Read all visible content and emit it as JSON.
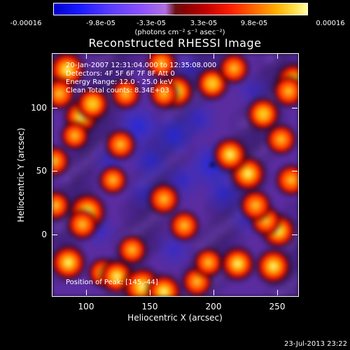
{
  "colorbar": {
    "ticks": [
      "-0.00016",
      "-9.8e-05",
      "-3.3e-05",
      "3.3e-05",
      "9.8e-05",
      "0.00016"
    ],
    "range": [
      -0.00016,
      0.00016
    ],
    "unit_label": "(photons cm⁻² s⁻¹ asec⁻²)"
  },
  "chart_data": {
    "type": "heatmap",
    "title": "Reconstructed RHESSI Image",
    "xlabel": "Heliocentric X (arcsec)",
    "ylabel": "Heliocentric Y (arcsec)",
    "xlim": [
      72,
      266
    ],
    "ylim": [
      -52,
      140
    ],
    "xticks": [
      "100",
      "150",
      "200",
      "250"
    ],
    "yticks": [
      "100",
      "50",
      "0"
    ],
    "peak_position": [
      145,
      -44
    ],
    "colormap_colors": [
      "#0000cc",
      "#8a50ff",
      "#8a0000",
      "#ff2000",
      "#ffb000",
      "#ffffa0"
    ],
    "hot_blobs": [
      {
        "x": 84,
        "y": 127,
        "v": 0.85
      },
      {
        "x": 78,
        "y": 108,
        "v": 0.6
      },
      {
        "x": 95,
        "y": 90,
        "v": 0.75
      },
      {
        "x": 74,
        "y": 55,
        "v": 0.55
      },
      {
        "x": 75,
        "y": 20,
        "v": 0.5
      },
      {
        "x": 100,
        "y": 15,
        "v": 0.9
      },
      {
        "x": 96,
        "y": 5,
        "v": 0.55
      },
      {
        "x": 85,
        "y": -25,
        "v": 0.8
      },
      {
        "x": 112,
        "y": -33,
        "v": 0.5
      },
      {
        "x": 123,
        "y": -36,
        "v": 0.75
      },
      {
        "x": 143,
        "y": -44,
        "v": 1.0
      },
      {
        "x": 160,
        "y": -48,
        "v": 0.8
      },
      {
        "x": 186,
        "y": -40,
        "v": 0.55
      },
      {
        "x": 195,
        "y": -25,
        "v": 0.5
      },
      {
        "x": 218,
        "y": -26,
        "v": 0.75
      },
      {
        "x": 246,
        "y": -28,
        "v": 0.8
      },
      {
        "x": 250,
        "y": 0,
        "v": 0.75
      },
      {
        "x": 240,
        "y": 8,
        "v": 0.55
      },
      {
        "x": 232,
        "y": 20,
        "v": 0.6
      },
      {
        "x": 260,
        "y": 40,
        "v": 0.6
      },
      {
        "x": 226,
        "y": 45,
        "v": 0.8
      },
      {
        "x": 212,
        "y": 60,
        "v": 0.75
      },
      {
        "x": 252,
        "y": 72,
        "v": 0.55
      },
      {
        "x": 238,
        "y": 92,
        "v": 0.7
      },
      {
        "x": 262,
        "y": 118,
        "v": 0.85
      },
      {
        "x": 258,
        "y": 110,
        "v": 0.6
      },
      {
        "x": 198,
        "y": 116,
        "v": 0.65
      },
      {
        "x": 158,
        "y": 132,
        "v": 0.55
      },
      {
        "x": 170,
        "y": 110,
        "v": 0.75
      },
      {
        "x": 160,
        "y": 108,
        "v": 0.5
      },
      {
        "x": 130,
        "y": 108,
        "v": 0.55
      },
      {
        "x": 126,
        "y": 68,
        "v": 0.55
      },
      {
        "x": 160,
        "y": 25,
        "v": 0.6
      },
      {
        "x": 120,
        "y": 40,
        "v": 0.45
      },
      {
        "x": 135,
        "y": -15,
        "v": 0.5
      },
      {
        "x": 176,
        "y": 4,
        "v": 0.55
      },
      {
        "x": 104,
        "y": 100,
        "v": 0.7
      },
      {
        "x": 90,
        "y": 75,
        "v": 0.45
      },
      {
        "x": 215,
        "y": 128,
        "v": 0.55
      }
    ],
    "cold_blobs": [
      {
        "x": 140,
        "y": 82,
        "v": 0.9
      },
      {
        "x": 168,
        "y": 75,
        "v": 0.85
      },
      {
        "x": 150,
        "y": 55,
        "v": 0.7
      },
      {
        "x": 198,
        "y": 52,
        "v": 1.0
      },
      {
        "x": 187,
        "y": 88,
        "v": 0.6
      },
      {
        "x": 207,
        "y": 30,
        "v": 0.7
      },
      {
        "x": 118,
        "y": 55,
        "v": 0.5
      },
      {
        "x": 175,
        "y": 40,
        "v": 0.6
      },
      {
        "x": 145,
        "y": 30,
        "v": 0.5
      },
      {
        "x": 168,
        "y": -15,
        "v": 0.55
      },
      {
        "x": 225,
        "y": 10,
        "v": 0.5
      },
      {
        "x": 110,
        "y": 0,
        "v": 0.45
      },
      {
        "x": 180,
        "y": 128,
        "v": 0.45
      },
      {
        "x": 230,
        "y": 110,
        "v": 0.45
      }
    ]
  },
  "info": {
    "line1": "20-Jan-2007 12:31:04.000 to 12:35:08.000",
    "line2": "Detectors: 4F 5F 6F 7F 8F  Att 0",
    "line3": "Energy Range: 12.0 - 25.0 keV",
    "line4": "Clean     Total counts: 8.34E+03",
    "peak": "Position of Peak:   [145,-44]"
  },
  "timestamp": "23-Jul-2013 23:22"
}
